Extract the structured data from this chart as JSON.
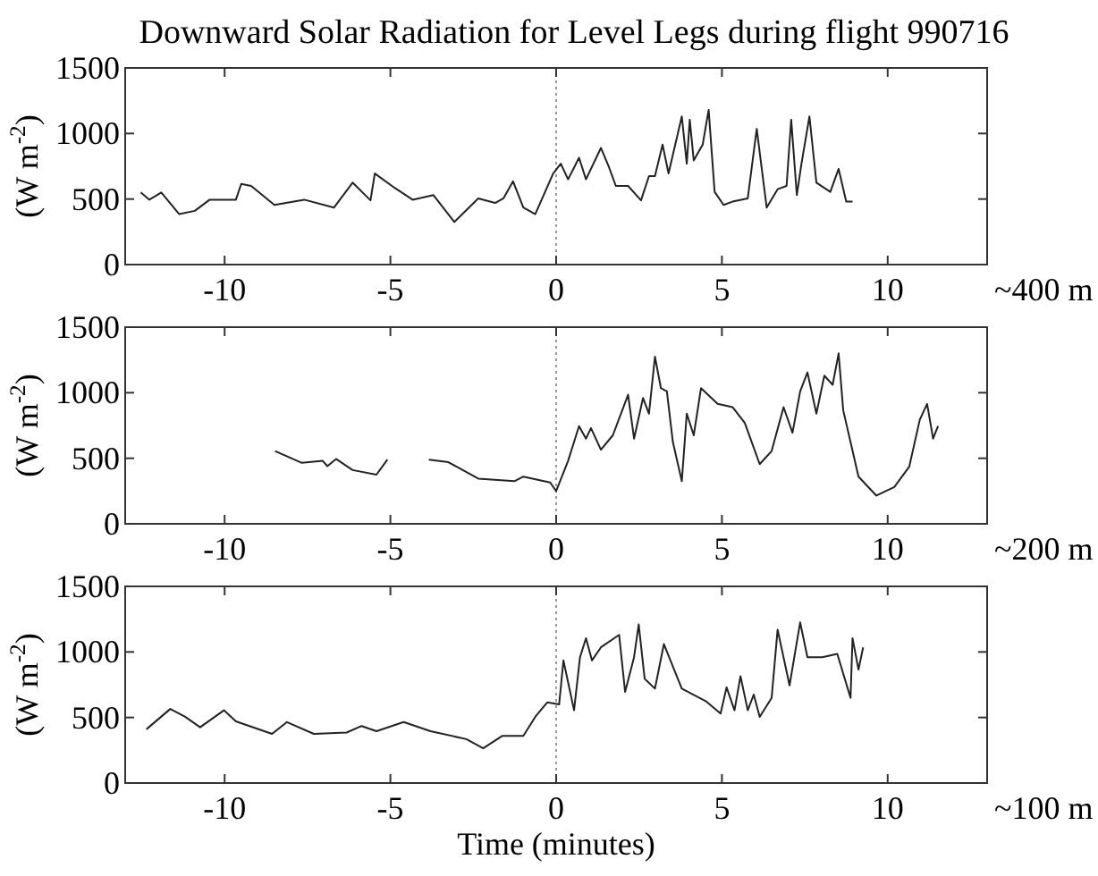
{
  "chart_data": [
    {
      "type": "line",
      "title": "Downward Solar Radiation for Level Legs during flight 990716",
      "ylabel": "(W m$^{-2}$)",
      "annotations": [
        "~400 m"
      ],
      "xlim": [
        -13,
        13
      ],
      "ylim": [
        0,
        1500
      ],
      "xticks": [
        -10,
        -5,
        0,
        5,
        10
      ],
      "yticks": [
        0,
        500,
        1000,
        1500
      ],
      "ref_lines": [
        {
          "axis": "x",
          "value": 0,
          "color": "#999999",
          "line_style": "dotted"
        }
      ],
      "series": [
        {
          "color": "#222222",
          "x": [
            -12.53,
            -12.27,
            -11.91,
            -11.37,
            -10.9,
            -10.45,
            -9.66,
            -9.5,
            -9.2,
            -8.5,
            -7.6,
            -6.7,
            -6.14,
            -5.6,
            -5.47,
            -4.87,
            -4.33,
            -3.7,
            -3.07,
            -2.35,
            -1.84,
            -1.59,
            -1.3,
            -0.99,
            -0.63,
            -0.09,
            0.14,
            0.36,
            0.69,
            0.9,
            1.35,
            1.59,
            1.8,
            2.17,
            2.56,
            2.8,
            2.98,
            3.21,
            3.39,
            3.79,
            3.94,
            4.03,
            4.15,
            4.42,
            4.6,
            4.78,
            5.05,
            5.32,
            5.78,
            6.05,
            6.35,
            6.68,
            6.95,
            7.09,
            7.26,
            7.4,
            7.64,
            7.85,
            8.27,
            8.52,
            8.75,
            8.94
          ],
          "values": [
            550,
            495,
            550,
            385,
            410,
            495,
            495,
            615,
            600,
            455,
            495,
            435,
            625,
            490,
            695,
            585,
            495,
            530,
            325,
            505,
            470,
            505,
            635,
            435,
            385,
            695,
            770,
            650,
            815,
            650,
            890,
            745,
            600,
            600,
            490,
            675,
            675,
            915,
            695,
            1130,
            770,
            1105,
            795,
            915,
            1180,
            555,
            455,
            480,
            505,
            1035,
            435,
            575,
            600,
            1105,
            530,
            770,
            1130,
            625,
            555,
            730,
            480,
            480
          ]
        }
      ]
    },
    {
      "type": "line",
      "ylabel": "(W m$^{-2}$)",
      "annotations": [
        "~200 m"
      ],
      "xlim": [
        -13,
        13
      ],
      "ylim": [
        0,
        1500
      ],
      "xticks": [
        -10,
        -5,
        0,
        5,
        10
      ],
      "yticks": [
        0,
        500,
        1000,
        1500
      ],
      "ref_lines": [
        {
          "axis": "x",
          "value": 0,
          "color": "#999999",
          "line_style": "dotted"
        }
      ],
      "series": [
        {
          "color": "#222222",
          "x": [
            -8.48,
            -7.67,
            -7.04,
            -6.9,
            -6.64,
            -6.14,
            -5.42,
            -5.09,
            -4.5,
            -3.84,
            -3.25,
            -2.35,
            -1.26,
            -0.99,
            -0.18,
            0,
            0.36,
            0.69,
            0.9,
            1.05,
            1.35,
            1.71,
            2.17,
            2.35,
            2.62,
            2.8,
            2.98,
            3.16,
            3.34,
            3.52,
            3.79,
            3.94,
            4.15,
            4.37,
            4.87,
            5.32,
            5.69,
            6.14,
            6.5,
            6.86,
            7.13,
            7.36,
            7.58,
            7.85,
            8.09,
            8.34,
            8.52,
            8.66,
            9.12,
            9.66,
            10.2,
            10.65,
            10.97,
            11.19,
            11.37,
            11.52
          ],
          "values": [
            555,
            465,
            480,
            440,
            495,
            410,
            375,
            490,
            null,
            490,
            470,
            345,
            325,
            360,
            315,
            250,
            480,
            745,
            650,
            730,
            565,
            675,
            985,
            650,
            960,
            840,
            1275,
            1035,
            1010,
            625,
            325,
            840,
            675,
            1035,
            915,
            890,
            770,
            455,
            555,
            890,
            695,
            1010,
            1155,
            840,
            1130,
            1060,
            1300,
            865,
            360,
            215,
            280,
            435,
            795,
            915,
            650,
            745
          ]
        }
      ]
    },
    {
      "type": "line",
      "ylabel": "(W m$^{-2}$)",
      "xlabel": "Time (minutes)",
      "annotations": [
        "~100 m"
      ],
      "xlim": [
        -13,
        13
      ],
      "ylim": [
        0,
        1500
      ],
      "xticks": [
        -10,
        -5,
        0,
        5,
        10
      ],
      "yticks": [
        0,
        500,
        1000,
        1500
      ],
      "ref_lines": [
        {
          "axis": "x",
          "value": 0,
          "color": "#999999",
          "line_style": "dotted"
        }
      ],
      "series": [
        {
          "color": "#222222",
          "x": [
            -12.36,
            -11.64,
            -11.19,
            -10.74,
            -10.02,
            -9.66,
            -8.57,
            -8.12,
            -7.31,
            -6.32,
            -5.87,
            -5.42,
            -4.6,
            -3.79,
            -2.71,
            -2.2,
            -1.62,
            -0.99,
            -0.63,
            -0.27,
            0.09,
            0.22,
            0.54,
            0.72,
            0.9,
            1.08,
            1.35,
            1.9,
            2.08,
            2.35,
            2.49,
            2.67,
            2.98,
            3.25,
            3.79,
            4.51,
            4.96,
            5.14,
            5.38,
            5.56,
            5.78,
            5.96,
            6.14,
            6.5,
            6.68,
            7.04,
            7.36,
            7.58,
            8.03,
            8.48,
            8.88,
            8.94,
            9.12,
            9.26
          ],
          "values": [
            410,
            565,
            505,
            425,
            555,
            470,
            375,
            465,
            375,
            385,
            435,
            395,
            465,
            395,
            335,
            265,
            360,
            360,
            505,
            615,
            600,
            935,
            555,
            960,
            1105,
            935,
            1035,
            1130,
            695,
            960,
            1210,
            795,
            720,
            1060,
            720,
            625,
            530,
            730,
            555,
            815,
            555,
            675,
            505,
            650,
            1170,
            745,
            1225,
            960,
            960,
            985,
            650,
            1105,
            865,
            1035
          ]
        }
      ]
    }
  ]
}
